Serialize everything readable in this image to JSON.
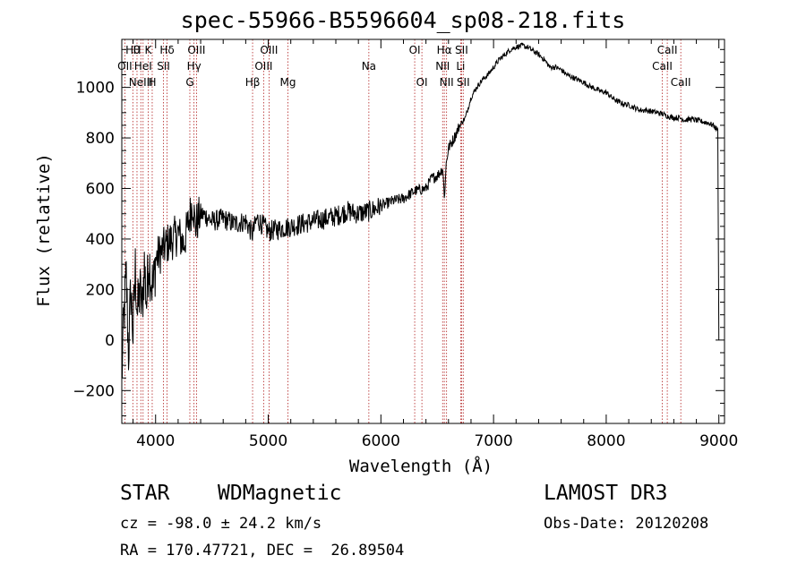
{
  "chart_data": {
    "type": "line",
    "title": "spec-55966-B5596604_sp08-218.fits",
    "xlabel": "Wavelength (Å)",
    "ylabel": "Flux (relative)",
    "xlim": [
      3700,
      9050
    ],
    "ylim": [
      -330,
      1190
    ],
    "x_ticks": [
      4000,
      5000,
      6000,
      7000,
      8000,
      9000
    ],
    "y_ticks": [
      -200,
      0,
      200,
      400,
      600,
      800,
      1000
    ],
    "series": [
      {
        "name": "spectrum",
        "x": [
          3700,
          3720,
          3740,
          3760,
          3780,
          3800,
          3820,
          3840,
          3860,
          3880,
          3900,
          3920,
          3940,
          3960,
          3980,
          4000,
          4050,
          4100,
          4150,
          4200,
          4250,
          4300,
          4330,
          4350,
          4400,
          4450,
          4500,
          4600,
          4700,
          4800,
          4860,
          4900,
          5000,
          5100,
          5200,
          5300,
          5400,
          5500,
          5600,
          5700,
          5800,
          5900,
          6000,
          6100,
          6200,
          6300,
          6400,
          6450,
          6500,
          6550,
          6563,
          6580,
          6600,
          6650,
          6700,
          6750,
          6800,
          6850,
          6900,
          6950,
          7000,
          7050,
          7100,
          7150,
          7200,
          7250,
          7300,
          7350,
          7400,
          7450,
          7500,
          7550,
          7600,
          7650,
          7700,
          7750,
          7800,
          7850,
          7900,
          7950,
          8000,
          8050,
          8100,
          8150,
          8200,
          8250,
          8300,
          8350,
          8400,
          8450,
          8500,
          8550,
          8600,
          8650,
          8700,
          8750,
          8800,
          8850,
          8900,
          8950,
          8970,
          8990,
          9000
        ],
        "y": [
          -150,
          100,
          250,
          -50,
          200,
          20,
          280,
          100,
          200,
          120,
          300,
          150,
          330,
          250,
          200,
          320,
          350,
          380,
          400,
          420,
          380,
          480,
          550,
          450,
          500,
          490,
          470,
          480,
          460,
          470,
          420,
          480,
          430,
          440,
          450,
          460,
          470,
          480,
          490,
          510,
          500,
          510,
          530,
          550,
          560,
          590,
          600,
          640,
          650,
          680,
          560,
          700,
          760,
          800,
          850,
          880,
          960,
          1000,
          1030,
          1050,
          1080,
          1110,
          1130,
          1150,
          1160,
          1165,
          1160,
          1145,
          1130,
          1110,
          1080,
          1080,
          1070,
          1050,
          1040,
          1030,
          1020,
          1005,
          995,
          985,
          980,
          960,
          945,
          935,
          930,
          920,
          910,
          910,
          905,
          900,
          895,
          885,
          880,
          880,
          870,
          875,
          870,
          865,
          860,
          850,
          840,
          830,
          0
        ]
      }
    ],
    "line_markers": [
      {
        "wl": 3798,
        "label": "Hθ",
        "row": 0
      },
      {
        "wl": 3835,
        "label": "H",
        "row": 0
      },
      {
        "wl": 3934,
        "label": "K",
        "row": 0
      },
      {
        "wl": 3970,
        "label": "H",
        "row": 2
      },
      {
        "wl": 4102,
        "label": "Hδ",
        "row": 0
      },
      {
        "wl": 3727,
        "label": "OII",
        "row": 1
      },
      {
        "wl": 3869,
        "label": "NeIII",
        "row": 2
      },
      {
        "wl": 3889,
        "label": "HeI",
        "row": 1
      },
      {
        "wl": 4070,
        "label": "SII",
        "row": 1
      },
      {
        "wl": 4304,
        "label": "G",
        "row": 2
      },
      {
        "wl": 4341,
        "label": "Hγ",
        "row": 1
      },
      {
        "wl": 4363,
        "label": "OIII",
        "row": 0
      },
      {
        "wl": 4861,
        "label": "Hβ",
        "row": 2
      },
      {
        "wl": 4959,
        "label": "OIII",
        "row": 1
      },
      {
        "wl": 5007,
        "label": "OIII",
        "row": 0
      },
      {
        "wl": 5175,
        "label": "Mg",
        "row": 2
      },
      {
        "wl": 5893,
        "label": "Na",
        "row": 1
      },
      {
        "wl": 6300,
        "label": "OI",
        "row": 0
      },
      {
        "wl": 6364,
        "label": "OI",
        "row": 2
      },
      {
        "wl": 6548,
        "label": "NII",
        "row": 1
      },
      {
        "wl": 6563,
        "label": "Hα",
        "row": 0
      },
      {
        "wl": 6583,
        "label": "NII",
        "row": 2
      },
      {
        "wl": 6716,
        "label": "SII",
        "row": 0
      },
      {
        "wl": 6731,
        "label": "SII",
        "row": 2
      },
      {
        "wl": 6708,
        "label": "Li",
        "row": 1
      },
      {
        "wl": 8498,
        "label": "CaII",
        "row": 1
      },
      {
        "wl": 8542,
        "label": "CaII",
        "row": 0
      },
      {
        "wl": 8662,
        "label": "CaII",
        "row": 2
      }
    ]
  },
  "info": {
    "class": "STAR",
    "subclass": "WDMagnetic",
    "survey": "LAMOST DR3",
    "cz": "cz = -98.0 ± 24.2 km/s",
    "obs_date": "Obs-Date: 20120208",
    "radec": "RA = 170.47721, DEC =  26.89504"
  }
}
